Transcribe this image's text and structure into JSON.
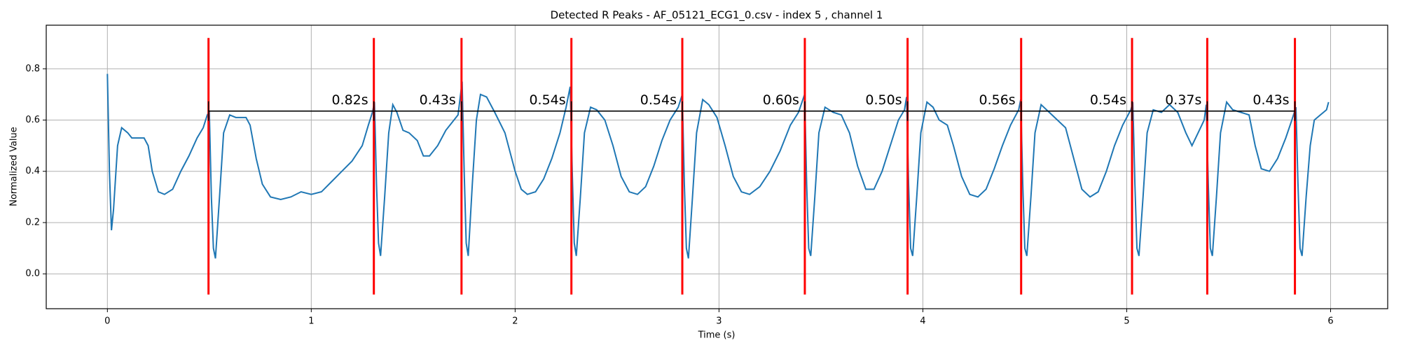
{
  "chart_data": {
    "type": "line",
    "title": "Detected R Peaks - AF_05121_ECG1_0.csv - index 5 , channel 1",
    "x_label": "Time (s)",
    "y_label": "Normalized Value",
    "xlim": [
      -0.3,
      6.28
    ],
    "ylim": [
      -0.136,
      0.97
    ],
    "xticks": [
      0,
      1,
      2,
      3,
      4,
      5,
      6
    ],
    "yticks": [
      {
        "value": 0,
        "label": "0.0"
      },
      0.2,
      0.4,
      0.6,
      0.8
    ],
    "grid": true,
    "x": [
      0,
      0.01,
      0.02,
      0.03,
      0.05,
      0.07,
      0.1,
      0.12,
      0.15,
      0.18,
      0.2,
      0.22,
      0.25,
      0.28,
      0.32,
      0.36,
      0.4,
      0.44,
      0.47,
      0.49,
      0.5,
      0.51,
      0.52,
      0.53,
      0.55,
      0.57,
      0.6,
      0.63,
      0.68,
      0.7,
      0.73,
      0.76,
      0.8,
      0.85,
      0.9,
      0.95,
      1.0,
      1.05,
      1.1,
      1.15,
      1.2,
      1.25,
      1.28,
      1.3,
      1.31,
      1.32,
      1.33,
      1.34,
      1.36,
      1.38,
      1.4,
      1.42,
      1.45,
      1.48,
      1.52,
      1.55,
      1.58,
      1.62,
      1.66,
      1.7,
      1.72,
      1.74,
      1.75,
      1.76,
      1.77,
      1.79,
      1.81,
      1.83,
      1.86,
      1.9,
      1.95,
      2.0,
      2.03,
      2.06,
      2.1,
      2.14,
      2.18,
      2.22,
      2.25,
      2.27,
      2.28,
      2.29,
      2.3,
      2.32,
      2.34,
      2.37,
      2.4,
      2.44,
      2.48,
      2.52,
      2.56,
      2.6,
      2.64,
      2.68,
      2.72,
      2.76,
      2.8,
      2.82,
      2.83,
      2.84,
      2.85,
      2.87,
      2.89,
      2.92,
      2.95,
      2.99,
      3.03,
      3.07,
      3.11,
      3.15,
      3.2,
      3.25,
      3.3,
      3.35,
      3.39,
      3.42,
      3.43,
      3.44,
      3.45,
      3.47,
      3.49,
      3.52,
      3.56,
      3.6,
      3.64,
      3.68,
      3.72,
      3.76,
      3.8,
      3.84,
      3.88,
      3.91,
      3.92,
      3.93,
      3.94,
      3.95,
      3.97,
      3.99,
      4.02,
      4.05,
      4.08,
      4.12,
      4.15,
      4.19,
      4.23,
      4.27,
      4.31,
      4.35,
      4.39,
      4.43,
      4.47,
      4.48,
      4.49,
      4.5,
      4.51,
      4.53,
      4.55,
      4.58,
      4.62,
      4.66,
      4.7,
      4.74,
      4.78,
      4.82,
      4.86,
      4.9,
      4.94,
      4.98,
      5.02,
      5.03,
      5.04,
      5.05,
      5.06,
      5.08,
      5.1,
      5.13,
      5.17,
      5.21,
      5.25,
      5.29,
      5.32,
      5.35,
      5.38,
      5.39,
      5.4,
      5.41,
      5.42,
      5.44,
      5.46,
      5.49,
      5.52,
      5.56,
      5.6,
      5.63,
      5.66,
      5.7,
      5.74,
      5.78,
      5.81,
      5.83,
      5.84,
      5.85,
      5.86,
      5.88,
      5.9,
      5.92,
      5.95,
      5.98,
      5.99
    ],
    "series": [
      {
        "color": "#1f77b4",
        "values": [
          0.78,
          0.4,
          0.17,
          0.25,
          0.5,
          0.57,
          0.55,
          0.53,
          0.53,
          0.53,
          0.5,
          0.4,
          0.32,
          0.31,
          0.33,
          0.4,
          0.46,
          0.53,
          0.57,
          0.62,
          0.63,
          0.3,
          0.1,
          0.06,
          0.3,
          0.55,
          0.62,
          0.61,
          0.61,
          0.58,
          0.45,
          0.35,
          0.3,
          0.29,
          0.3,
          0.32,
          0.31,
          0.32,
          0.36,
          0.4,
          0.44,
          0.5,
          0.58,
          0.63,
          0.67,
          0.35,
          0.12,
          0.07,
          0.3,
          0.55,
          0.66,
          0.63,
          0.56,
          0.55,
          0.52,
          0.46,
          0.46,
          0.5,
          0.56,
          0.6,
          0.62,
          0.75,
          0.4,
          0.12,
          0.07,
          0.35,
          0.6,
          0.7,
          0.69,
          0.63,
          0.55,
          0.4,
          0.33,
          0.31,
          0.32,
          0.37,
          0.45,
          0.55,
          0.65,
          0.73,
          0.4,
          0.12,
          0.07,
          0.3,
          0.55,
          0.65,
          0.64,
          0.6,
          0.5,
          0.38,
          0.32,
          0.31,
          0.34,
          0.42,
          0.52,
          0.6,
          0.65,
          0.7,
          0.35,
          0.1,
          0.06,
          0.3,
          0.55,
          0.68,
          0.66,
          0.61,
          0.5,
          0.38,
          0.32,
          0.31,
          0.34,
          0.4,
          0.48,
          0.58,
          0.63,
          0.7,
          0.35,
          0.1,
          0.07,
          0.3,
          0.55,
          0.65,
          0.63,
          0.62,
          0.55,
          0.42,
          0.33,
          0.33,
          0.4,
          0.5,
          0.6,
          0.64,
          0.69,
          0.35,
          0.1,
          0.07,
          0.3,
          0.55,
          0.67,
          0.65,
          0.6,
          0.58,
          0.5,
          0.38,
          0.31,
          0.3,
          0.33,
          0.41,
          0.5,
          0.58,
          0.64,
          0.68,
          0.35,
          0.1,
          0.07,
          0.3,
          0.55,
          0.66,
          0.63,
          0.6,
          0.57,
          0.45,
          0.33,
          0.3,
          0.32,
          0.4,
          0.5,
          0.58,
          0.64,
          0.67,
          0.35,
          0.1,
          0.07,
          0.3,
          0.55,
          0.64,
          0.63,
          0.66,
          0.63,
          0.55,
          0.5,
          0.55,
          0.6,
          0.66,
          0.35,
          0.1,
          0.07,
          0.3,
          0.55,
          0.67,
          0.64,
          0.63,
          0.62,
          0.5,
          0.41,
          0.4,
          0.45,
          0.53,
          0.6,
          0.65,
          0.35,
          0.1,
          0.07,
          0.3,
          0.5,
          0.6,
          0.62,
          0.64,
          0.67
        ]
      }
    ],
    "peaks": {
      "color": "#ff0000",
      "x": [
        0.496,
        1.307,
        1.737,
        2.276,
        2.82,
        3.421,
        3.925,
        4.482,
        5.026,
        5.395,
        5.825
      ]
    },
    "intervals": {
      "color": "#000000",
      "level": 0.635,
      "values": [
        0.82,
        0.43,
        0.54,
        0.54,
        0.6,
        0.5,
        0.56,
        0.54,
        0.37,
        0.43
      ],
      "value_labels": [
        "0.82s",
        "0.43s",
        "0.54s",
        "0.54s",
        "0.60s",
        "0.50s",
        "0.56s",
        "0.54s",
        "0.37s",
        "0.43s"
      ]
    }
  }
}
